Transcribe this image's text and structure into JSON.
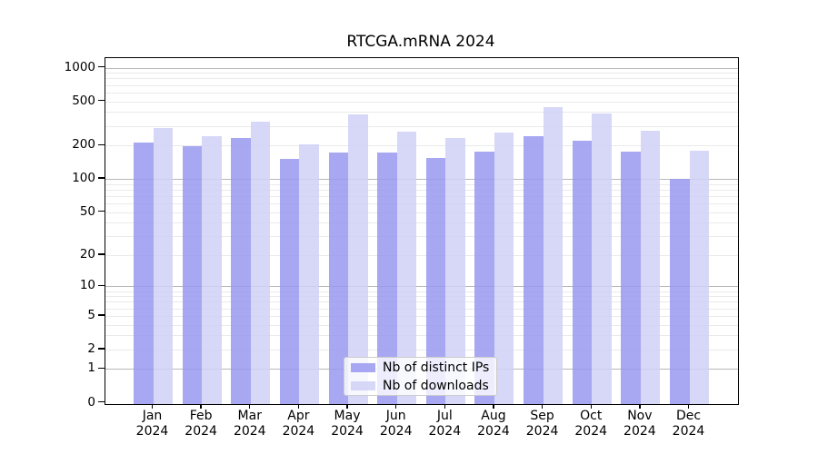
{
  "title": "RTCGA.mRNA 2024",
  "chart_data": {
    "type": "bar",
    "title": "RTCGA.mRNA 2024",
    "categories": [
      "Jan",
      "Feb",
      "Mar",
      "Apr",
      "May",
      "Jun",
      "Jul",
      "Aug",
      "Sep",
      "Oct",
      "Nov",
      "Dec"
    ],
    "category_year": "2024",
    "series": [
      {
        "name": "Nb of distinct IPs",
        "color": "#9898f0",
        "values": [
          212,
          199,
          233,
          152,
          172,
          172,
          155,
          175,
          243,
          220,
          175,
          101
        ]
      },
      {
        "name": "Nb of downloads",
        "color": "#d0d0f6",
        "values": [
          285,
          241,
          327,
          206,
          378,
          268,
          236,
          264,
          441,
          385,
          270,
          181
        ]
      }
    ],
    "xlabel": "",
    "ylabel": "",
    "y_axis": {
      "scale": "log1p",
      "ticks": [
        0,
        1,
        2,
        5,
        10,
        20,
        50,
        100,
        200,
        500,
        1000
      ],
      "range": [
        0,
        1250
      ]
    },
    "grid": {
      "major_lines": [
        1,
        10,
        100,
        1000
      ],
      "minor_lines": [
        2,
        3,
        4,
        5,
        6,
        7,
        8,
        9,
        20,
        30,
        40,
        50,
        60,
        70,
        80,
        90,
        200,
        300,
        400,
        500,
        600,
        700,
        800,
        900
      ]
    },
    "legend_position": "lower-center"
  },
  "colors": {
    "grid_major": "#b8b8b8",
    "grid_minor": "#eaeaea",
    "axis": "#000000",
    "legend_border": "#cccccc",
    "background": "#ffffff"
  }
}
